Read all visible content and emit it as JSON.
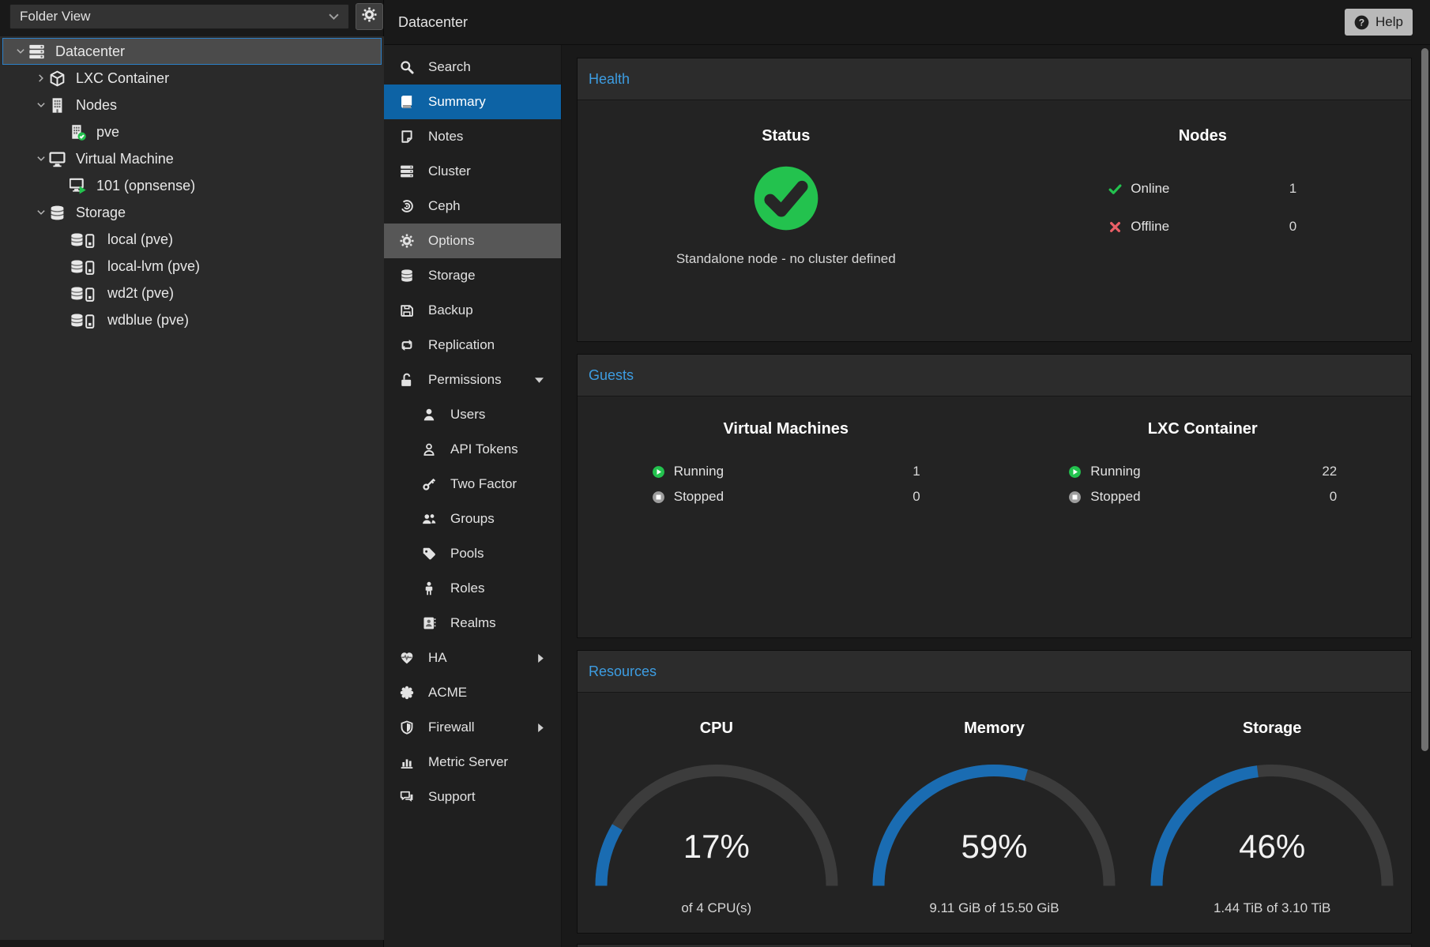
{
  "header": {
    "title": "Datacenter",
    "help": "Help"
  },
  "left_panel": {
    "view_selector": "Folder View",
    "tree": [
      {
        "label": "Datacenter",
        "icon": "server-stack",
        "level": 0,
        "expand": "expanded",
        "selected": true
      },
      {
        "label": "LXC Container",
        "icon": "cube",
        "level": 1,
        "expand": "collapsed"
      },
      {
        "label": "Nodes",
        "icon": "building",
        "level": 1,
        "expand": "expanded"
      },
      {
        "label": "pve",
        "icon": "building-check",
        "level": 2
      },
      {
        "label": "Virtual Machine",
        "icon": "desktop",
        "level": 1,
        "expand": "expanded"
      },
      {
        "label": "101 (opnsense)",
        "icon": "desktop-play",
        "level": 2
      },
      {
        "label": "Storage",
        "icon": "database",
        "level": 1,
        "expand": "expanded"
      },
      {
        "label": "local (pve)",
        "icon": "database-drive",
        "level": 2
      },
      {
        "label": "local-lvm (pve)",
        "icon": "database-drive",
        "level": 2
      },
      {
        "label": "wd2t (pve)",
        "icon": "database-drive",
        "level": 2
      },
      {
        "label": "wdblue (pve)",
        "icon": "database-drive",
        "level": 2
      }
    ]
  },
  "sidebar": {
    "header": "Datacenter",
    "items": [
      {
        "label": "Search",
        "icon": "search"
      },
      {
        "label": "Summary",
        "icon": "book",
        "selected": true
      },
      {
        "label": "Notes",
        "icon": "note"
      },
      {
        "label": "Cluster",
        "icon": "server-stack"
      },
      {
        "label": "Ceph",
        "icon": "ceph"
      },
      {
        "label": "Options",
        "icon": "gear",
        "hovered": true
      },
      {
        "label": "Storage",
        "icon": "database"
      },
      {
        "label": "Backup",
        "icon": "floppy"
      },
      {
        "label": "Replication",
        "icon": "replication"
      },
      {
        "label": "Permissions",
        "icon": "unlock",
        "chevron": "down"
      },
      {
        "label": "Users",
        "icon": "user",
        "indent": true
      },
      {
        "label": "API Tokens",
        "icon": "user-outline",
        "indent": true
      },
      {
        "label": "Two Factor",
        "icon": "key",
        "indent": true
      },
      {
        "label": "Groups",
        "icon": "users",
        "indent": true
      },
      {
        "label": "Pools",
        "icon": "tag",
        "indent": true
      },
      {
        "label": "Roles",
        "icon": "person",
        "indent": true
      },
      {
        "label": "Realms",
        "icon": "address-book",
        "indent": true
      },
      {
        "label": "HA",
        "icon": "heartbeat",
        "chevron": "right"
      },
      {
        "label": "ACME",
        "icon": "seal"
      },
      {
        "label": "Firewall",
        "icon": "shield",
        "chevron": "right"
      },
      {
        "label": "Metric Server",
        "icon": "bar-chart"
      },
      {
        "label": "Support",
        "icon": "comments"
      }
    ]
  },
  "panels": {
    "health": {
      "title": "Health",
      "status": {
        "heading": "Status",
        "message": "Standalone node - no cluster defined"
      },
      "nodes": {
        "heading": "Nodes",
        "rows": [
          {
            "icon": "check",
            "label": "Online",
            "value": "1"
          },
          {
            "icon": "cross",
            "label": "Offline",
            "value": "0"
          }
        ]
      }
    },
    "guests": {
      "title": "Guests",
      "columns": [
        {
          "heading": "Virtual Machines",
          "rows": [
            {
              "icon": "play",
              "label": "Running",
              "value": "1"
            },
            {
              "icon": "stop",
              "label": "Stopped",
              "value": "0"
            }
          ]
        },
        {
          "heading": "LXC Container",
          "rows": [
            {
              "icon": "play",
              "label": "Running",
              "value": "22"
            },
            {
              "icon": "stop",
              "label": "Stopped",
              "value": "0"
            }
          ]
        }
      ]
    },
    "resources": {
      "title": "Resources",
      "gauges": [
        {
          "heading": "CPU",
          "percent": 17,
          "label": "17%",
          "sub": "of 4 CPU(s)"
        },
        {
          "heading": "Memory",
          "percent": 59,
          "label": "59%",
          "sub": "9.11 GiB of 15.50 GiB"
        },
        {
          "heading": "Storage",
          "percent": 46,
          "label": "46%",
          "sub": "1.44 TiB of 3.10 TiB"
        }
      ]
    }
  },
  "colors": {
    "selection_blue": "#0d63a5",
    "panel_title_blue": "#3d9de2",
    "status_green": "#23c24e",
    "status_red": "#ea5f66",
    "gauge_blue": "#1a6cb2",
    "gauge_track": "#3c3c3c",
    "hover_gray": "#575757",
    "tree_selected_border": "#2c7fc6"
  }
}
